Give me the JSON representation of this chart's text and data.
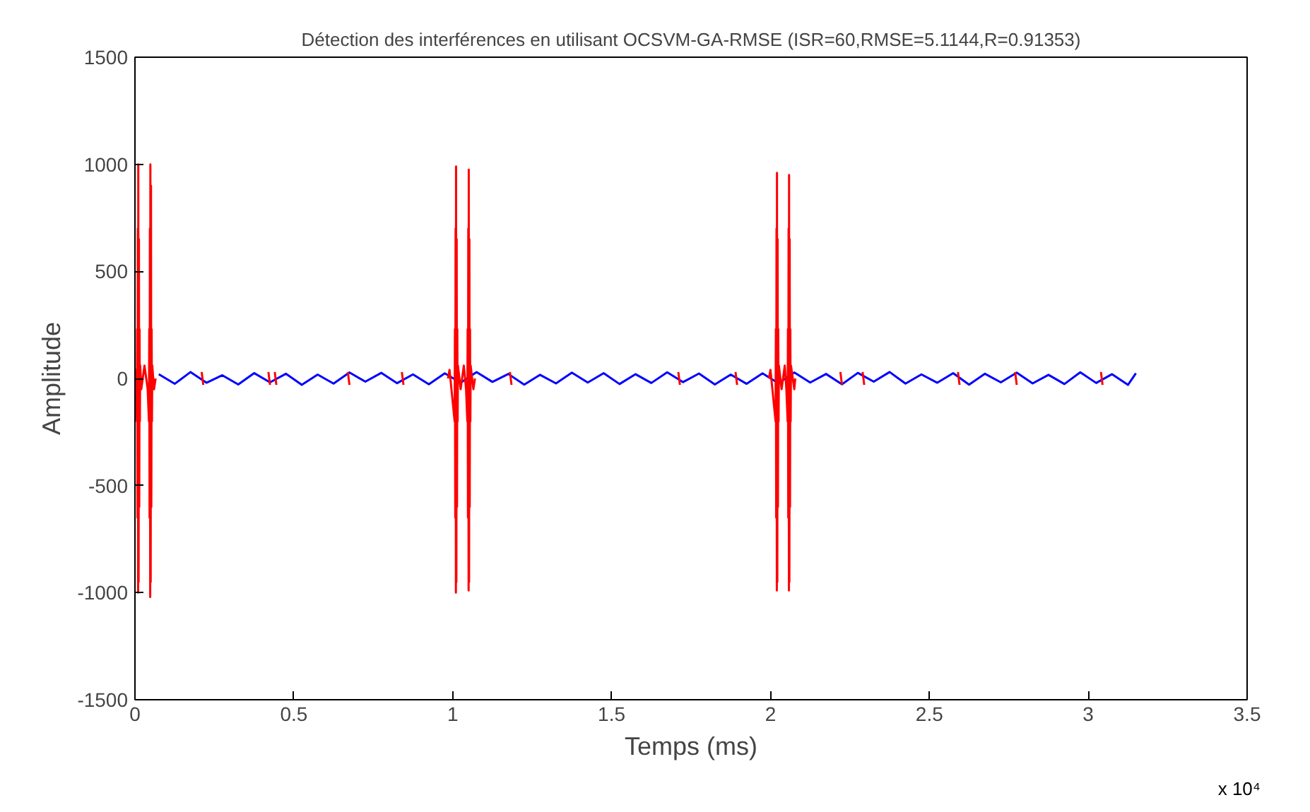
{
  "chart_data": {
    "type": "line",
    "title": "Détection des interférences en utilisant OCSVM-GA-RMSE (ISR=60,RMSE=5.1144,R=0.91353)",
    "xlabel": "Temps (ms)",
    "ylabel": "Amplitude",
    "xlim": [
      0,
      3.5
    ],
    "ylim": [
      -1500,
      1500
    ],
    "xticks": [
      0,
      0.5,
      1,
      1.5,
      2,
      2.5,
      3,
      3.5
    ],
    "yticks": [
      -1500,
      -1000,
      -500,
      0,
      500,
      1000,
      1500
    ],
    "annotations": [
      "x 10⁴"
    ],
    "series": [
      {
        "color": "#0000ff",
        "x": [
          0.075,
          0.125,
          0.175,
          0.225,
          0.275,
          0.325,
          0.375,
          0.425,
          0.475,
          0.525,
          0.575,
          0.625,
          0.675,
          0.725,
          0.775,
          0.825,
          0.875,
          0.925,
          0.975,
          1.025,
          1.075,
          1.125,
          1.175,
          1.225,
          1.275,
          1.325,
          1.375,
          1.425,
          1.475,
          1.525,
          1.575,
          1.625,
          1.675,
          1.725,
          1.775,
          1.825,
          1.875,
          1.925,
          1.975,
          2.025,
          2.075,
          2.125,
          2.175,
          2.225,
          2.275,
          2.325,
          2.375,
          2.425,
          2.475,
          2.525,
          2.575,
          2.625,
          2.675,
          2.725,
          2.775,
          2.825,
          2.875,
          2.925,
          2.975,
          3.025,
          3.075,
          3.125,
          3.15
        ],
        "values": [
          20,
          -25,
          30,
          -20,
          15,
          -28,
          25,
          -18,
          22,
          -30,
          18,
          -24,
          28,
          -15,
          26,
          -22,
          19,
          -27,
          24,
          -20,
          30,
          -16,
          21,
          -29,
          17,
          -23,
          27,
          -19,
          25,
          -26,
          20,
          -21,
          29,
          -17,
          23,
          -28,
          18,
          -25,
          24,
          -22,
          28,
          -19,
          21,
          -27,
          26,
          -15,
          30,
          -24,
          19,
          -20,
          25,
          -29,
          22,
          -18,
          27,
          -23,
          17,
          -26,
          29,
          -21,
          20,
          -30,
          24
        ]
      },
      {
        "color": "#ff0000",
        "x": [
          0,
          0.003,
          0.006,
          0.007,
          0.008,
          0.009,
          0.01,
          0.0105,
          0.0115,
          0.0125,
          0.0135,
          0.0145,
          0.0155,
          0.0165,
          0.02,
          0.03,
          0.04,
          0.044,
          0.045,
          0.046,
          0.047,
          0.048,
          0.0485,
          0.0495,
          0.0505,
          0.0515,
          0.0525,
          0.0535,
          0.0545,
          0.06,
          0.065,
          null,
          0.21,
          0.215,
          null,
          0.42,
          0.425,
          null,
          0.44,
          0.445,
          null,
          0.67,
          0.675,
          null,
          0.84,
          0.845,
          null,
          0.985,
          0.99,
          1.006,
          1.007,
          1.008,
          1.009,
          1.01,
          1.0105,
          1.0115,
          1.0125,
          1.0135,
          1.0145,
          1.0155,
          1.0165,
          1.025,
          1.035,
          1.042,
          1.046,
          1.047,
          1.048,
          1.049,
          1.05,
          1.0505,
          1.0515,
          1.0525,
          1.0535,
          1.0545,
          1.0555,
          1.0565,
          1.065,
          1.07,
          null,
          1.18,
          1.185,
          null,
          1.71,
          1.715,
          null,
          1.89,
          1.895,
          null,
          1.995,
          2.0,
          2.016,
          2.017,
          2.018,
          2.019,
          2.02,
          2.0205,
          2.0215,
          2.0225,
          2.0235,
          2.0245,
          2.0255,
          2.0265,
          2.035,
          2.045,
          2.05,
          2.054,
          2.055,
          2.056,
          2.057,
          2.058,
          2.0585,
          2.0595,
          2.0605,
          2.0615,
          2.0625,
          2.0635,
          2.0645,
          2.075,
          2.078,
          null,
          2.22,
          2.225,
          null,
          2.29,
          2.295,
          null,
          2.59,
          2.595,
          null,
          2.77,
          2.775,
          null,
          3.04,
          3.045
        ],
        "values": [
          0,
          40,
          -200,
          230,
          -650,
          700,
          -1000,
          1000,
          -950,
          650,
          -600,
          230,
          -200,
          60,
          -50,
          60,
          -50,
          -200,
          230,
          -650,
          700,
          -1020,
          1000,
          -950,
          900,
          -600,
          230,
          -200,
          60,
          -50,
          0,
          null,
          30,
          -30,
          null,
          30,
          -30,
          null,
          30,
          -30,
          null,
          30,
          -30,
          null,
          30,
          -30,
          null,
          0,
          40,
          -200,
          230,
          -650,
          700,
          -1000,
          990,
          -950,
          650,
          -600,
          230,
          -200,
          60,
          -50,
          60,
          -50,
          -200,
          230,
          -650,
          700,
          -990,
          975,
          -950,
          650,
          -600,
          230,
          -200,
          60,
          -50,
          0,
          null,
          30,
          -30,
          null,
          30,
          -30,
          null,
          30,
          -30,
          null,
          0,
          40,
          -200,
          230,
          -650,
          700,
          -990,
          960,
          -950,
          650,
          -600,
          230,
          -200,
          60,
          -50,
          60,
          -50,
          -200,
          230,
          -650,
          700,
          -990,
          950,
          -950,
          650,
          -600,
          230,
          -200,
          60,
          -50,
          0,
          null,
          30,
          -30,
          null,
          30,
          -30,
          null,
          30,
          -30,
          null,
          30,
          -30,
          null,
          30,
          -30
        ]
      }
    ]
  }
}
